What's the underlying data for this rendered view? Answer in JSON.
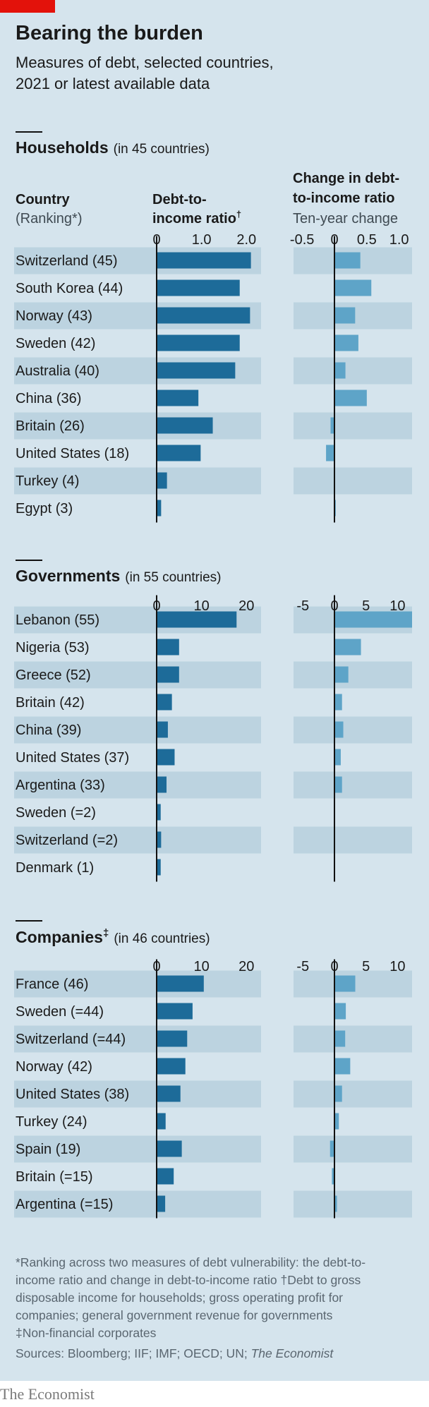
{
  "header": {
    "title": "Bearing the burden",
    "subtitle_line1": "Measures of debt, selected countries,",
    "subtitle_line2": "2021 or latest available data"
  },
  "column_headers": {
    "country": "Country",
    "ranking": "(Ranking*)",
    "ratio_line1": "Debt-to-",
    "ratio_line2": "income ratio",
    "ratio_mark": "†",
    "change_line1": "Change in debt-",
    "change_line2": "to-income ratio",
    "change_line3": "Ten-year change"
  },
  "colors": {
    "background": "#d5e4ed",
    "band": "#bcd3e0",
    "bar_ratio": "#1d6b99",
    "bar_change": "#5ea4c8",
    "axis": "#111111",
    "accent": "#e3120b",
    "text": "#1a1a1a",
    "muted": "#3f4a52"
  },
  "chart_data": [
    {
      "type": "bar",
      "title": "Households",
      "note": "(in 45 countries)",
      "categories": [
        "Switzerland (45)",
        "South Korea (44)",
        "Norway (43)",
        "Sweden (42)",
        "Australia (40)",
        "China (36)",
        "Britain (26)",
        "United States (18)",
        "Turkey (4)",
        "Egypt (3)"
      ],
      "series": [
        {
          "name": "Debt-to-income ratio",
          "values": [
            2.1,
            1.85,
            2.08,
            1.85,
            1.75,
            0.93,
            1.25,
            0.98,
            0.23,
            0.1
          ],
          "xlim": [
            0,
            2.2
          ],
          "ticks": [
            0,
            1.0,
            2.0
          ],
          "tick_labels": [
            "0",
            "1.0",
            "2.0"
          ]
        },
        {
          "name": "Change in debt-to-income ratio",
          "values": [
            0.4,
            0.57,
            0.32,
            0.37,
            0.17,
            0.5,
            -0.06,
            -0.13,
            0.0,
            0.02
          ],
          "xlim": [
            -0.7,
            1.2
          ],
          "ticks": [
            -0.5,
            0,
            0.5,
            1.0
          ],
          "tick_labels": [
            "-0.5",
            "0",
            "0.5",
            "1.0"
          ]
        }
      ]
    },
    {
      "type": "bar",
      "title": "Governments",
      "note": "(in 55 countries)",
      "categories": [
        "Lebanon (55)",
        "Nigeria (53)",
        "Greece (52)",
        "Britain (42)",
        "China (39)",
        "United States (37)",
        "Argentina (33)",
        "Sweden (=2)",
        "Switzerland (=2)",
        "Denmark (1)"
      ],
      "series": [
        {
          "name": "Debt-to-income ratio",
          "values": [
            17.8,
            5.0,
            5.0,
            3.4,
            2.5,
            4.0,
            2.2,
            0.9,
            1.0,
            0.9
          ],
          "xlim": [
            0,
            22
          ],
          "ticks": [
            0,
            10,
            20
          ],
          "tick_labels": [
            "0",
            "10",
            "20"
          ]
        },
        {
          "name": "Change in debt-to-income ratio",
          "values": [
            12.3,
            4.2,
            2.2,
            1.2,
            1.4,
            1.0,
            1.2,
            0.0,
            0.0,
            0.0
          ],
          "xlim": [
            -7,
            12.3
          ],
          "ticks": [
            -5,
            0,
            5,
            10
          ],
          "tick_labels": [
            "-5",
            "0",
            "5",
            "10"
          ]
        }
      ]
    },
    {
      "type": "bar",
      "title": "Companies",
      "title_mark": "‡",
      "note": "(in 46 countries)",
      "categories": [
        "France (46)",
        "Sweden (=44)",
        "Switzerland (=44)",
        "Norway (42)",
        "United States (38)",
        "Turkey (24)",
        "Spain (19)",
        "Britain (=15)",
        "Argentina (=15)"
      ],
      "series": [
        {
          "name": "Debt-to-income ratio",
          "values": [
            10.5,
            8.0,
            6.8,
            6.4,
            5.3,
            2.0,
            5.6,
            3.8,
            1.9
          ],
          "xlim": [
            0,
            22
          ],
          "ticks": [
            0,
            10,
            20
          ],
          "tick_labels": [
            "0",
            "10",
            "20"
          ]
        },
        {
          "name": "Change in debt-to-income ratio",
          "values": [
            3.3,
            1.8,
            1.7,
            2.5,
            1.2,
            0.7,
            -0.7,
            -0.4,
            0.4
          ],
          "xlim": [
            -7,
            12.3
          ],
          "ticks": [
            -5,
            0,
            5,
            10
          ],
          "tick_labels": [
            "-5",
            "0",
            "5",
            "10"
          ]
        }
      ]
    }
  ],
  "footnotes": {
    "line1": "*Ranking across two measures of debt vulnerability: the debt-to-",
    "line2a": "income ratio and change in debt-to-income ratio ",
    "line2b": "†Debt to gross",
    "line3": "disposable income for households; gross operating profit for",
    "line4": "companies; general government revenue for governments",
    "line5": "‡Non-financial corporates",
    "sources_prefix": "Sources: Bloomberg; IIF; IMF; OECD; UN; ",
    "sources_italic": "The Economist"
  },
  "brand": "The Economist"
}
